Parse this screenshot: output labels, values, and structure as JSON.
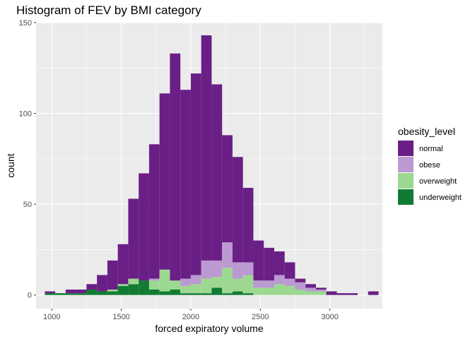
{
  "chart_data": {
    "type": "bar",
    "stacked": true,
    "title": "Histogram of FEV by BMI category",
    "xlabel": "forced expiratory volume",
    "ylabel": "count",
    "xlim": [
      887,
      3378
    ],
    "ylim": [
      -7.5,
      150
    ],
    "xticks": [
      1000,
      1500,
      2000,
      2500,
      3000
    ],
    "yticks": [
      0,
      50,
      100,
      150
    ],
    "grid": true,
    "legend": {
      "title": "obesity_level",
      "position": "right",
      "items": [
        {
          "name": "normal",
          "color": "#6A1F86"
        },
        {
          "name": "obese",
          "color": "#BA9AD0"
        },
        {
          "name": "overweight",
          "color": "#9DD891"
        },
        {
          "name": "underweight",
          "color": "#127B33"
        }
      ]
    },
    "bins": [
      {
        "x0": 950,
        "x1": 1025,
        "normal": 1,
        "obese": 0,
        "overweight": 0,
        "underweight": 1
      },
      {
        "x0": 1025,
        "x1": 1100,
        "normal": 0,
        "obese": 0,
        "overweight": 0,
        "underweight": 1
      },
      {
        "x0": 1100,
        "x1": 1175,
        "normal": 2,
        "obese": 0,
        "overweight": 0,
        "underweight": 1
      },
      {
        "x0": 1175,
        "x1": 1250,
        "normal": 2,
        "obese": 0,
        "overweight": 0,
        "underweight": 1
      },
      {
        "x0": 1250,
        "x1": 1325,
        "normal": 3,
        "obese": 0,
        "overweight": 0,
        "underweight": 3
      },
      {
        "x0": 1325,
        "x1": 1400,
        "normal": 9,
        "obese": 0,
        "overweight": 0,
        "underweight": 2
      },
      {
        "x0": 1400,
        "x1": 1475,
        "normal": 16,
        "obese": 0,
        "overweight": 1,
        "underweight": 2
      },
      {
        "x0": 1475,
        "x1": 1550,
        "normal": 22,
        "obese": 0,
        "overweight": 1,
        "underweight": 5
      },
      {
        "x0": 1550,
        "x1": 1625,
        "normal": 44,
        "obese": 0,
        "overweight": 3,
        "underweight": 6
      },
      {
        "x0": 1625,
        "x1": 1700,
        "normal": 59,
        "obese": 0,
        "overweight": 0,
        "underweight": 8
      },
      {
        "x0": 1700,
        "x1": 1775,
        "normal": 74,
        "obese": 1,
        "overweight": 5,
        "underweight": 3
      },
      {
        "x0": 1775,
        "x1": 1850,
        "normal": 97,
        "obese": 0,
        "overweight": 12,
        "underweight": 2
      },
      {
        "x0": 1850,
        "x1": 1925,
        "normal": 125,
        "obese": 0,
        "overweight": 5,
        "underweight": 3
      },
      {
        "x0": 1925,
        "x1": 2000,
        "normal": 104,
        "obese": 4,
        "overweight": 4,
        "underweight": 1
      },
      {
        "x0": 2000,
        "x1": 2075,
        "normal": 111,
        "obese": 5,
        "overweight": 5,
        "underweight": 1
      },
      {
        "x0": 2075,
        "x1": 2150,
        "normal": 124,
        "obese": 10,
        "overweight": 8,
        "underweight": 1
      },
      {
        "x0": 2150,
        "x1": 2225,
        "normal": 97,
        "obese": 9,
        "overweight": 6,
        "underweight": 4
      },
      {
        "x0": 2225,
        "x1": 2300,
        "normal": 59,
        "obese": 14,
        "overweight": 14,
        "underweight": 1
      },
      {
        "x0": 2300,
        "x1": 2375,
        "normal": 58,
        "obese": 9,
        "overweight": 7,
        "underweight": 2
      },
      {
        "x0": 2375,
        "x1": 2450,
        "normal": 41,
        "obese": 7,
        "overweight": 10,
        "underweight": 1
      },
      {
        "x0": 2450,
        "x1": 2525,
        "normal": 22,
        "obese": 4,
        "overweight": 4,
        "underweight": 0
      },
      {
        "x0": 2525,
        "x1": 2600,
        "normal": 18,
        "obese": 4,
        "overweight": 4,
        "underweight": 0
      },
      {
        "x0": 2600,
        "x1": 2675,
        "normal": 13,
        "obese": 5,
        "overweight": 6,
        "underweight": 0
      },
      {
        "x0": 2675,
        "x1": 2750,
        "normal": 9,
        "obese": 4,
        "overweight": 5,
        "underweight": 0
      },
      {
        "x0": 2750,
        "x1": 2825,
        "normal": 2,
        "obese": 4,
        "overweight": 3,
        "underweight": 0
      },
      {
        "x0": 2825,
        "x1": 2900,
        "normal": 2,
        "obese": 2,
        "overweight": 2,
        "underweight": 0
      },
      {
        "x0": 2900,
        "x1": 2975,
        "normal": 1,
        "obese": 1,
        "overweight": 2,
        "underweight": 0
      },
      {
        "x0": 2975,
        "x1": 3050,
        "normal": 2,
        "obese": 0,
        "overweight": 0,
        "underweight": 0
      },
      {
        "x0": 3050,
        "x1": 3125,
        "normal": 1,
        "obese": 0,
        "overweight": 0,
        "underweight": 0
      },
      {
        "x0": 3125,
        "x1": 3200,
        "normal": 1,
        "obese": 0,
        "overweight": 0,
        "underweight": 0
      },
      {
        "x0": 3200,
        "x1": 3275,
        "normal": 0,
        "obese": 0,
        "overweight": 0,
        "underweight": 0
      },
      {
        "x0": 3275,
        "x1": 3350,
        "normal": 2,
        "obese": 0,
        "overweight": 0,
        "underweight": 0
      }
    ]
  }
}
